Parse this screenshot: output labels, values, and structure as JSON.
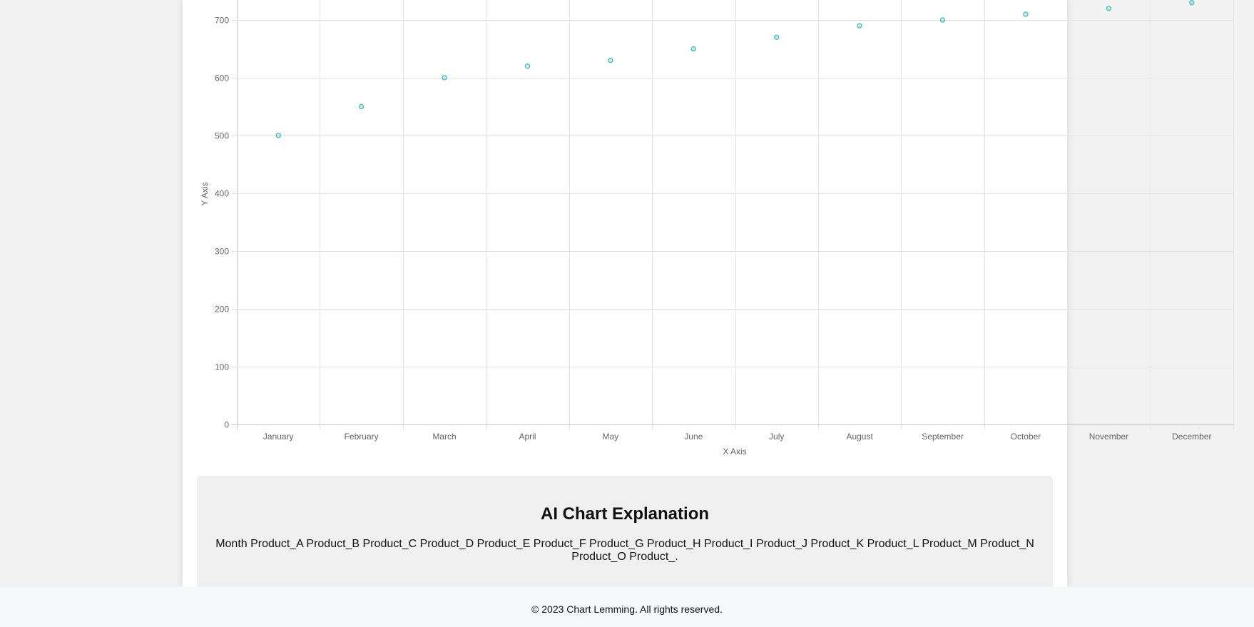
{
  "chart_data": {
    "type": "scatter",
    "categories": [
      "January",
      "February",
      "March",
      "April",
      "May",
      "June",
      "July",
      "August",
      "September",
      "October",
      "November",
      "December"
    ],
    "values": [
      500,
      550,
      600,
      620,
      630,
      650,
      670,
      690,
      700,
      710,
      720,
      730
    ],
    "xlabel": "X Axis",
    "ylabel": "Y Axis",
    "yticks": [
      0,
      100,
      200,
      300,
      400,
      500,
      600,
      700
    ],
    "ylim": [
      0,
      740
    ],
    "grid": true,
    "point_color": "#4bc0c0"
  },
  "explanation": {
    "title": "AI Chart Explanation",
    "text": "Month Product_A Product_B Product_C Product_D Product_E Product_F Product_G Product_H Product_I Product_J Product_K Product_L Product_M Product_N Product_O Product_."
  },
  "footer": {
    "text": "© 2023 Chart Lemming. All rights reserved."
  }
}
